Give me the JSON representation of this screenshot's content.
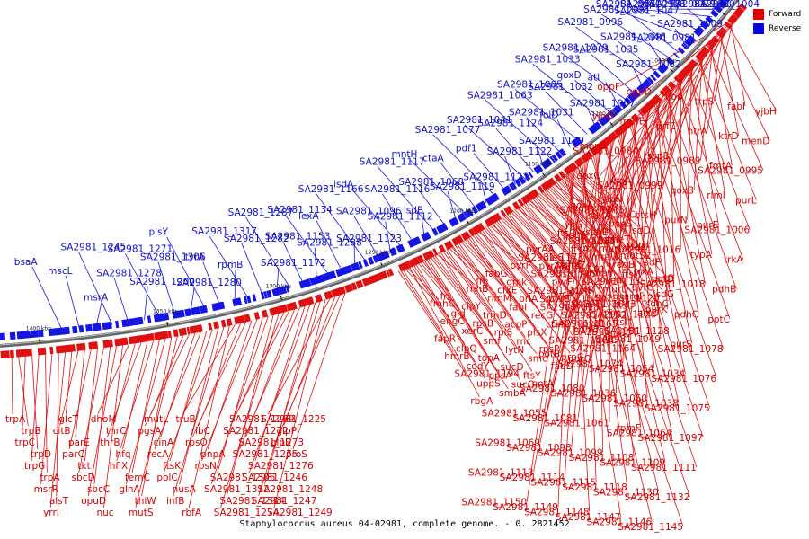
{
  "caption": "Staphylococcus aureus 04-02981, complete genome. - 0..2821452",
  "legend": [
    {
      "label": "Forward",
      "color": "#e00000"
    },
    {
      "label": "Reverse",
      "color": "#0000e0"
    }
  ],
  "scale_ticks": [
    "1000 kbp",
    "1050 kbp",
    "1100 kbp",
    "1150 kbp",
    "1200 kbp",
    "1250 kbp",
    "1300 kbp",
    "1350 kbp",
    "1400 kbp"
  ],
  "reverse_labels": [
    "SA2981_1004",
    "SA2981_0979",
    "SA2981_0958",
    "SA2981_1010",
    "sspC",
    "SA2981_0971",
    "SA2981_1009",
    "SA2981_1047",
    "SA2981_1008",
    "SA2981_0981",
    "SA2981_1046",
    "SA2981_0996",
    "SA2981_1082",
    "SA2981_1035",
    "SA2981_1079",
    "atl",
    "qoxD",
    "SA2981_1033",
    "SA2981_1067",
    "SA2981_1032",
    "SA2981_1065",
    "folD",
    "SA2981_1031",
    "SA2981_1063",
    "SA2981_1129",
    "SA2981_1124",
    "SA2981_1041",
    "SA2981_1122",
    "pdf1",
    "SA2981_1077",
    "SA2981_1121",
    "ctaA",
    "mntH",
    "SA2981_1119",
    "SA2981_1068",
    "SA2981_1117",
    "isdB",
    "SA2981_1116",
    "isdA",
    "SA2981_1112",
    "SA2981_1096",
    "SA2981_1166",
    "SA2981_1123",
    "lexA",
    "SA2981_1134",
    "SA2981_1288",
    "SA2981_1153",
    "SA2981_1287",
    "SA2981_1172",
    "SA2981_1282",
    "SA2981_1317",
    "rpmB",
    "tyrA",
    "plsY",
    "SA2981_1280",
    "SA2981_1306",
    "SA2981_1271",
    "SA2981_1200",
    "SA2981_1278",
    "SA2981_1245",
    "msrA",
    "mscL",
    "bsaA"
  ],
  "forward_labels_right": [
    "oppF",
    "oppD",
    "hbo",
    "trpS",
    "fabI",
    "yjbH",
    "yjbO",
    "murE",
    "prfC",
    "htrA",
    "ktrD",
    "menD",
    "menB",
    "SA2981_0984",
    "sspB",
    "SA2981_0989",
    "fmtA",
    "SA2981_0995",
    "qoxC",
    "sspA",
    "SA2981_0999",
    "qoxB",
    "rlmI",
    "purL",
    "qoxA",
    "SA2981_1005",
    "ptsH",
    "purN",
    "purE",
    "SA2981_1006",
    "pdhA",
    "ptsI",
    "purH",
    "SA2981_1016",
    "typA",
    "trkA",
    "purM",
    "SA2981_1017",
    "ftsW",
    "potD",
    "SA2981_1018",
    "pdhB",
    "pycA",
    "SA2981_1042",
    "SA2981_1043",
    "purK",
    "pdhC",
    "potC",
    "ctaB",
    "pdhD",
    "purC",
    "SA2981_1049",
    "purS",
    "SA2981_1078",
    "potB",
    "purQ",
    "SA2981_1074",
    "SA2981_1054",
    "SA2981_1034",
    "SA2981_1076",
    "potA",
    "SA2981_1080",
    "SA2981_1036",
    "SA2981_1060",
    "SA2981_1038",
    "SA2981_1075",
    "SA2981_1055",
    "SA2981_1081",
    "SA2981_1061",
    "rpmF",
    "SA2981_1064",
    "SA2981_1097",
    "SA2981_1069",
    "SA2981_1098",
    "SA2981_1099",
    "SA2981_1108",
    "SA2981_1109",
    "SA2981_1111",
    "SA2981_1113",
    "SA2981_1114",
    "SA2981_1115",
    "SA2981_1118",
    "SA2981_1130",
    "SA2981_1132",
    "SA2981_1150",
    "SA2981_1149",
    "SA2981_1148",
    "SA2981_1147",
    "SA2981_1146",
    "SA2981_1145"
  ],
  "forward_labels_inner": [
    "ylbN",
    "isdC",
    "isdD",
    "isdE",
    "isdF",
    "srtB",
    "isdG",
    "spoU",
    "pheS",
    "pheT",
    "mutS2",
    "trxA",
    "uvrC",
    "sdhC",
    "sdhA",
    "sdhB",
    "murI",
    "rdgB",
    "efb",
    "argF",
    "arcD",
    "yjjG",
    "mraZ",
    "mraW",
    "mraY",
    "murD",
    "ftsL",
    "ftsI",
    "ftsQ",
    "ftsA",
    "ftsZ",
    "SA2981_1135",
    "SA2981_1120",
    "SA2981_1126",
    "SA2981_1128",
    "SA2981_1131",
    "ileS",
    "lsp",
    "pyrR",
    "pyrP",
    "pyrB",
    "pyrC",
    "pyrAA",
    "pyrAB",
    "pyrF",
    "pyrE",
    "SA2981_1152",
    "SA2981_1155",
    "SA2981_1164",
    "SA2981_1173",
    "SA2981_1175",
    "SA2981_1176",
    "SA2981_1181",
    "SA2981_1165",
    "SA2981_1168",
    "prpC",
    "pyrF",
    "gmk",
    "priA",
    "recG",
    "plsX",
    "rpsP",
    "fabD",
    "fabG",
    "cfxE",
    "fabI",
    "acpP",
    "rnc",
    "smc",
    "ftsY",
    "ffh",
    "rimM",
    "trmD",
    "rplS",
    "lytN",
    "sucD",
    "sucC",
    "rnhB",
    "clpY",
    "rpsB",
    "smf",
    "topA",
    "ppsA",
    "smbA",
    "frr",
    "gid",
    "xerC",
    "clpQ",
    "codY",
    "uppS",
    "rbgA",
    "fmhC",
    "engC",
    "fapR",
    "hmrB",
    "SA2981_1194"
  ],
  "forward_labels_bottom": [
    "trpA",
    "trpB",
    "trpC",
    "trpD",
    "trpG",
    "trpA",
    "msrR",
    "alsT",
    "yrrI",
    "glcT",
    "citB",
    "parE",
    "parC",
    "tkt",
    "sbcD",
    "sbcC",
    "opuD",
    "nuc",
    "dhoM",
    "thrC",
    "thrB",
    "hfq",
    "hflX",
    "femC",
    "glnA",
    "thiW",
    "mutS",
    "mutL",
    "pgsA",
    "cinA",
    "recA",
    "ftsK",
    "polC",
    "nusA",
    "infB",
    "rbfA",
    "truB",
    "ribC",
    "rpsO",
    "pnpA",
    "rpsN",
    "SA2981_1305",
    "SA2981_1312",
    "SA2981_1314",
    "SA2981_1274",
    "SA2981_1269",
    "SA2981_1272",
    "SA2981_1273",
    "SA2981_1275",
    "SA2981_1276",
    "SA2981_1246",
    "SA2981_1248",
    "SA2981_1247",
    "SA2981_1249",
    "SA2981_1225",
    "glpP",
    "glpF",
    "proS"
  ]
}
